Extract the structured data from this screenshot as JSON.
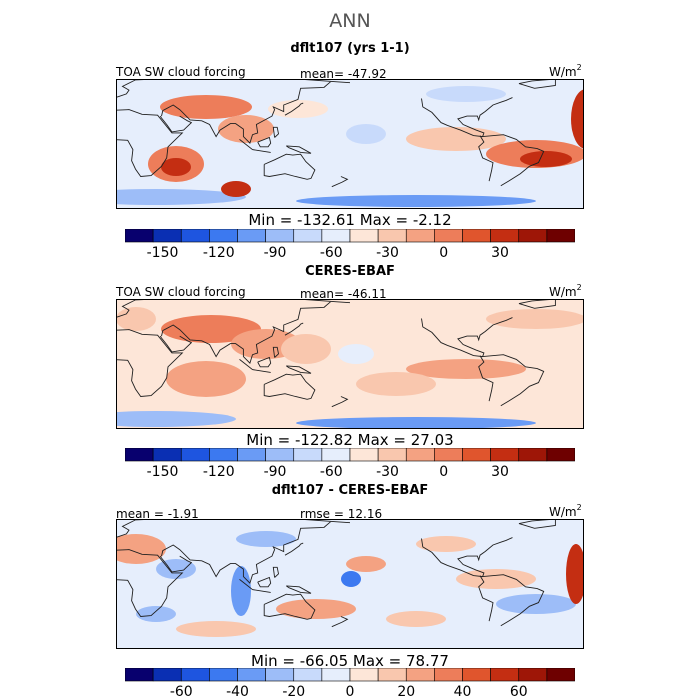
{
  "page": {
    "title": "ANN"
  },
  "colors": {
    "scale": [
      "#08006e",
      "#0a2fb3",
      "#1e55e0",
      "#3c79f0",
      "#6a9bf5",
      "#9dbdf8",
      "#c8dafb",
      "#e6eefc",
      "#fde6d8",
      "#f9c7ae",
      "#f4a282",
      "#ed7d5a",
      "#e0552d",
      "#c42e12",
      "#9e1607",
      "#6e0000"
    ],
    "coast": "#202020",
    "frame": "#000000"
  },
  "chart_data": [
    {
      "type": "heatmap",
      "title": "dflt107 (yrs 1-1)",
      "variable": "TOA SW cloud forcing",
      "mean_label": "mean= -47.92",
      "units": "W/m",
      "units_exp": "2",
      "min_max_label": "Min = -132.61  Max =  -2.12",
      "colorbar": {
        "levels": [
          -170,
          -155,
          -140,
          -125,
          -110,
          -95,
          -80,
          -65,
          -50,
          -35,
          -20,
          -5,
          10,
          25,
          40,
          55,
          70
        ],
        "tick_values": [
          -150,
          -120,
          -90,
          -60,
          -30,
          0,
          30
        ],
        "tick_labels": [
          "-150",
          "-120",
          "-90",
          "-60",
          "-30",
          "0",
          "30"
        ]
      }
    },
    {
      "type": "heatmap",
      "title": "CERES-EBAF",
      "variable": "TOA SW cloud forcing",
      "mean_label": "mean= -46.11",
      "units": "W/m",
      "units_exp": "2",
      "min_max_label": "Min = -122.82  Max =  27.03",
      "colorbar": {
        "levels": [
          -170,
          -155,
          -140,
          -125,
          -110,
          -95,
          -80,
          -65,
          -50,
          -35,
          -20,
          -5,
          10,
          25,
          40,
          55,
          70
        ],
        "tick_values": [
          -150,
          -120,
          -90,
          -60,
          -30,
          0,
          30
        ],
        "tick_labels": [
          "-150",
          "-120",
          "-90",
          "-60",
          "-30",
          "0",
          "30"
        ]
      }
    },
    {
      "type": "heatmap",
      "title": "dflt107 - CERES-EBAF",
      "mean_label": "mean = -1.91",
      "rmse_label": "rmse =  12.16",
      "units": "W/m",
      "units_exp": "2",
      "min_max_label": "Min = -66.05  Max =  78.77",
      "colorbar": {
        "levels": [
          -80,
          -70,
          -60,
          -50,
          -40,
          -30,
          -20,
          -10,
          0,
          10,
          20,
          30,
          40,
          50,
          60,
          70,
          80
        ],
        "tick_values": [
          -60,
          -40,
          -20,
          0,
          20,
          40,
          60
        ],
        "tick_labels": [
          "-60",
          "-40",
          "-20",
          "0",
          "20",
          "40",
          "60"
        ]
      }
    }
  ]
}
